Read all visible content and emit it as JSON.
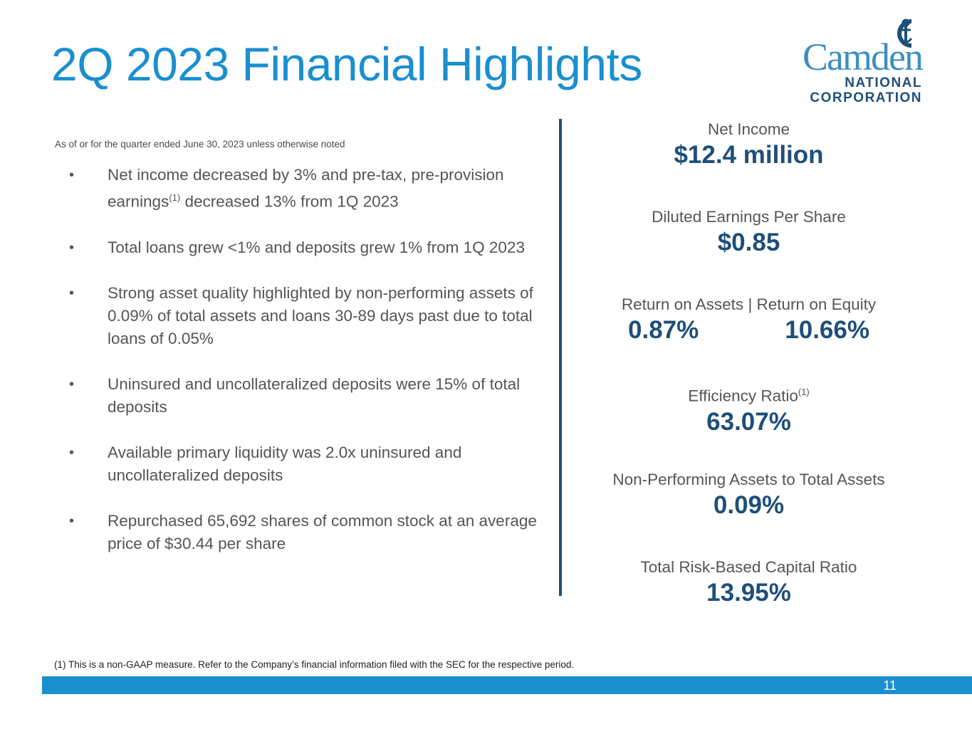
{
  "title": "2Q 2023 Financial Highlights",
  "logo": {
    "name": "Camden",
    "line1": "NATIONAL",
    "line2": "CORPORATION",
    "icon": "anchor-icon"
  },
  "subtitle": "As of or for the quarter ended June 30, 2023 unless otherwise noted",
  "bullets": [
    {
      "before": "Net income decreased by 3% and pre-tax, pre-provision earnings",
      "sup": "(1)",
      "after": " decreased 13% from 1Q 2023"
    },
    {
      "before": "Total loans grew <1% and deposits grew 1% from 1Q 2023"
    },
    {
      "before": "Strong asset quality highlighted by non-performing assets of 0.09% of total assets and loans 30-89 days past due to total loans of 0.05%"
    },
    {
      "before": "Uninsured and uncollateralized deposits were 15% of total deposits"
    },
    {
      "before": "Available primary liquidity was 2.0x uninsured and uncollateralized deposits"
    },
    {
      "before": "Repurchased 65,692 shares of common stock at an average price of $30.44 per share"
    }
  ],
  "bullet_symbol": "•",
  "metrics": {
    "net_income": {
      "label": "Net Income",
      "value": "$12.4 million"
    },
    "eps": {
      "label": "Diluted Earnings Per Share",
      "value": "$0.85"
    },
    "returns": {
      "label": "Return on Assets | Return on Equity",
      "roa": "0.87%",
      "roe": "10.66%"
    },
    "efficiency": {
      "label": "Efficiency Ratio",
      "sup": "(1)",
      "value": "63.07%"
    },
    "npa": {
      "label": "Non-Performing Assets to Total Assets",
      "value": "0.09%"
    },
    "capital": {
      "label": "Total Risk-Based Capital Ratio",
      "value": "13.95%"
    }
  },
  "footnote": "(1) This is a non-GAAP measure. Refer to the Company’s financial information filed with the SEC for the respective period.",
  "page_number": "11",
  "colors": {
    "title_blue": "#1a8fd0",
    "navy": "#1e4f7a",
    "text_gray": "#555555"
  }
}
